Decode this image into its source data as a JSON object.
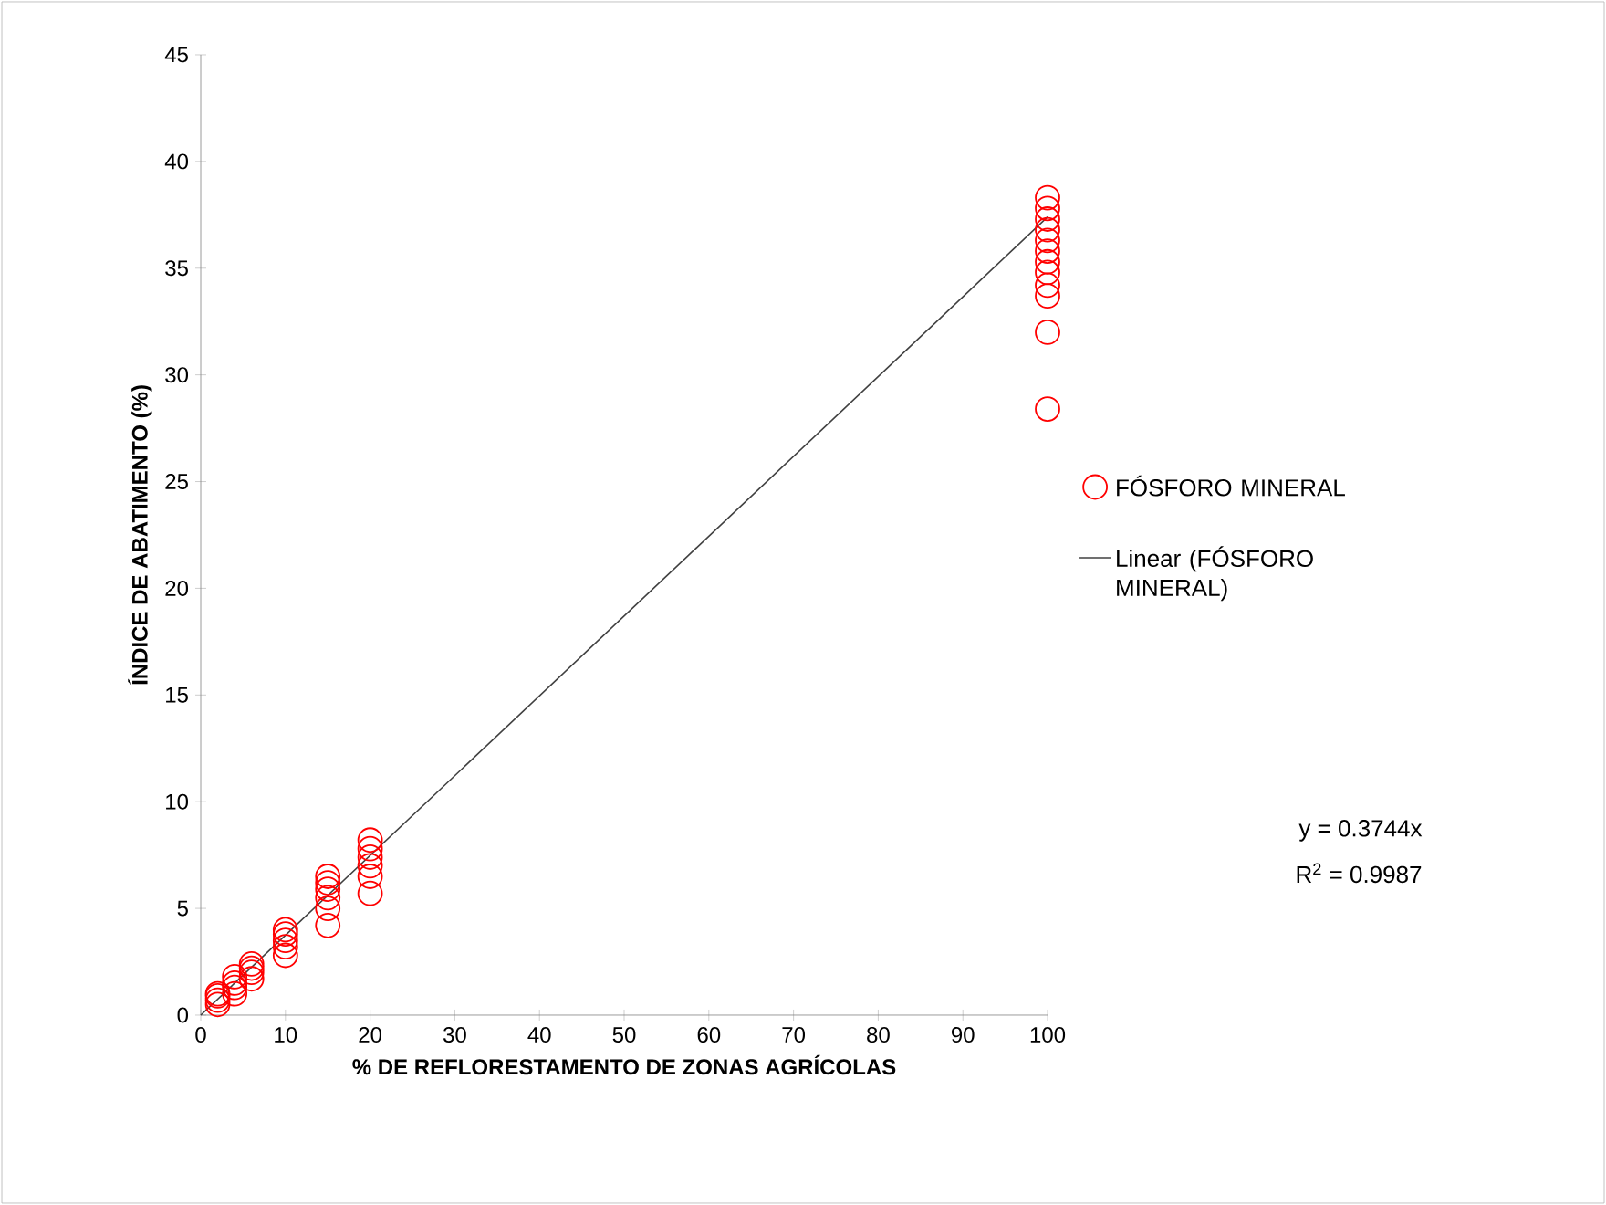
{
  "chart_data": {
    "type": "scatter",
    "xlabel": "% DE REFLORESTAMENTO  DE ZONAS AGRÍCOLAS",
    "ylabel": "ÍNDICE DE ABATIMENTO  (%)",
    "xlim": [
      0,
      100
    ],
    "ylim": [
      0,
      45
    ],
    "xticks": [
      0,
      10,
      20,
      30,
      40,
      50,
      60,
      70,
      80,
      90,
      100
    ],
    "yticks": [
      0,
      5,
      10,
      15,
      20,
      25,
      30,
      35,
      40,
      45
    ],
    "grid": false,
    "legend": "right",
    "marker": "circle",
    "series": [
      {
        "name": "FÓSFORO MINERAL",
        "color": "#ff0000",
        "x": [
          2,
          2,
          2,
          2,
          4,
          4,
          4,
          4,
          6,
          6,
          6,
          6,
          10,
          10,
          10,
          10,
          10,
          15,
          15,
          15,
          15,
          15,
          15,
          20,
          20,
          20,
          20,
          20,
          20,
          100,
          100,
          100,
          100,
          100,
          100,
          100,
          100,
          100,
          100,
          100,
          100
        ],
        "values": [
          0.5,
          0.7,
          0.9,
          1.0,
          1.0,
          1.3,
          1.5,
          1.8,
          1.7,
          2.0,
          2.2,
          2.4,
          2.8,
          3.2,
          3.5,
          3.8,
          4.0,
          4.2,
          5.0,
          5.5,
          5.9,
          6.2,
          6.5,
          5.7,
          6.5,
          7.0,
          7.4,
          7.8,
          8.2,
          28.4,
          32.0,
          33.7,
          34.2,
          34.8,
          35.3,
          35.8,
          36.3,
          36.8,
          37.3,
          37.8,
          38.3
        ]
      },
      {
        "name": "Linear (FÓSFORO MINERAL)",
        "type": "line",
        "color": "#404040",
        "line_style": "solid",
        "marker": "none",
        "x": [
          0,
          100
        ],
        "values": [
          0,
          37.4
        ]
      }
    ],
    "annotations": [
      "y = 0.3744x",
      "R$^{2}$ = 0.9987"
    ]
  }
}
